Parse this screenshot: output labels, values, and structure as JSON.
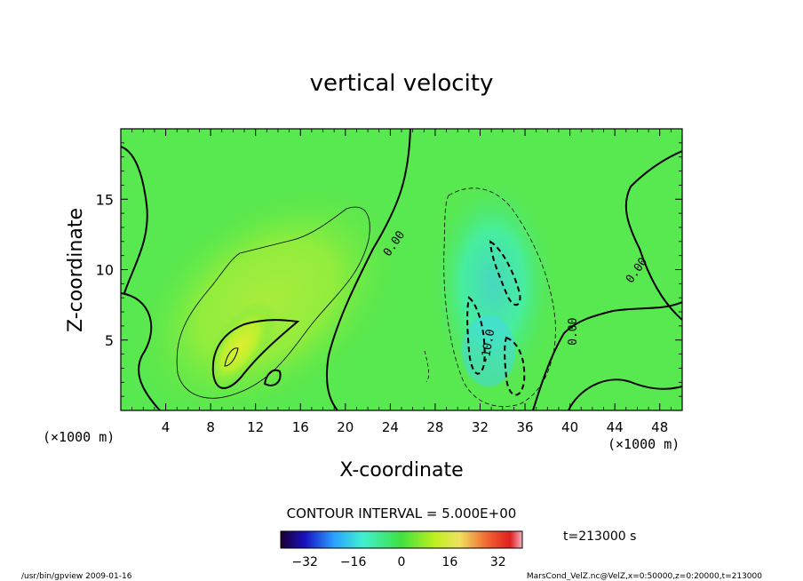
{
  "chart_data": {
    "type": "heatmap",
    "title": "vertical velocity",
    "xlabel": "X-coordinate",
    "ylabel": "Z-coordinate",
    "x_unit": "(×1000 m)",
    "z_unit": "(×1000 m)",
    "xlim": [
      0,
      50
    ],
    "ylim": [
      0,
      20
    ],
    "x_ticks": [
      4,
      8,
      12,
      16,
      20,
      24,
      28,
      32,
      36,
      40,
      44,
      48
    ],
    "y_ticks": [
      5,
      10,
      15
    ],
    "contour_interval_label": "CONTOUR INTERVAL = 5.000E+00",
    "contour_labels": [
      {
        "text": "0.00",
        "x": 24.6,
        "z": 11.7,
        "angle": -55
      },
      {
        "text": "0.00",
        "x": 46.2,
        "z": 9.8,
        "angle": -55
      },
      {
        "text": "0.00",
        "x": 40.6,
        "z": 5.6,
        "angle": -90
      },
      {
        "text": "-10.0",
        "x": 33.0,
        "z": 4.5,
        "angle": -80
      }
    ],
    "colorbar": {
      "ticks": [
        -32,
        -16,
        0,
        16,
        32
      ],
      "range": [
        -40,
        40
      ]
    },
    "time_label": "t=213000 s",
    "footer_left": "/usr/bin/gpview  2009-01-16",
    "footer_right": "MarsCond_VelZ.nc@VelZ,x=0:50000,z=0:20000,t=213000"
  }
}
